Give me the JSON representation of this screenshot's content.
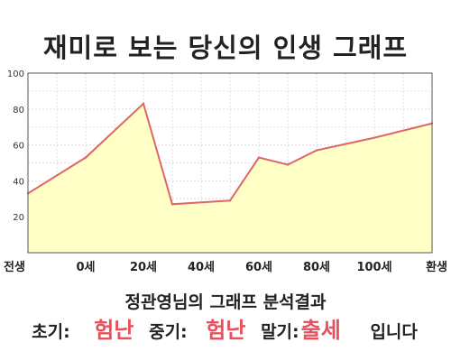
{
  "header": {
    "title": "재미로 보는 당신의 인생 그래프"
  },
  "chart_data": {
    "type": "area",
    "title": "재미로 보는 당신의 인생 그래프",
    "xlabel": "",
    "ylabel": "",
    "x_ticks": [
      "전생",
      "0세",
      "20세",
      "40세",
      "60세",
      "80세",
      "100세",
      "환생"
    ],
    "y_ticks": [
      "20",
      "40",
      "60",
      "80",
      "100"
    ],
    "ylim": [
      0,
      100
    ],
    "grid": true,
    "legend": "none",
    "line_color": "#e06666",
    "fill_color": "#ffffc6",
    "points": [
      {
        "x": "전생",
        "y": 33
      },
      {
        "x": "0세",
        "y": 53
      },
      {
        "x": "20세",
        "y": 83
      },
      {
        "x": "30세",
        "y": 27
      },
      {
        "x": "50세",
        "y": 29
      },
      {
        "x": "60세",
        "y": 53
      },
      {
        "x": "70세",
        "y": 49
      },
      {
        "x": "80세",
        "y": 57
      },
      {
        "x": "100세",
        "y": 64
      },
      {
        "x": "환생",
        "y": 72
      }
    ]
  },
  "result": {
    "heading": "정관영님의 그래프 분석결과",
    "early_label": "초기:",
    "early_value": "험난",
    "middle_label": "중기:",
    "middle_value": "험난",
    "late_label": "말기:",
    "late_value": "출세",
    "suffix": "입니다"
  }
}
